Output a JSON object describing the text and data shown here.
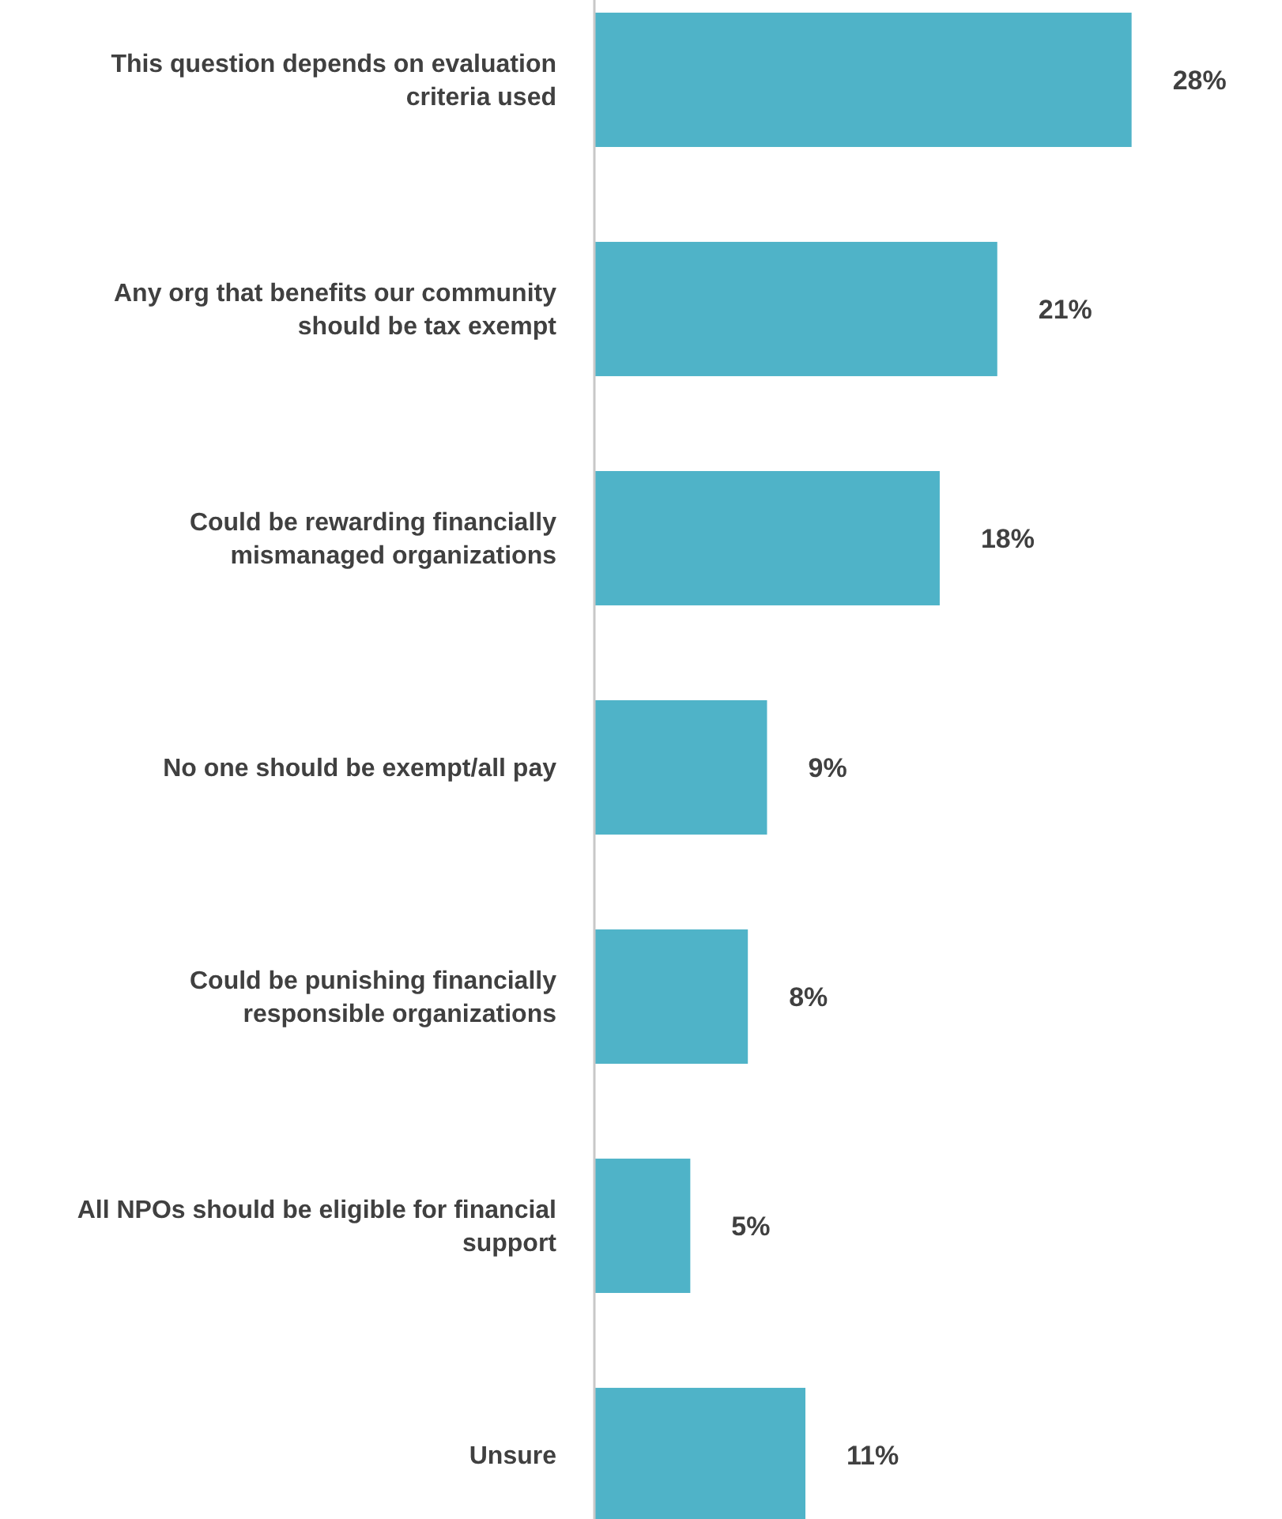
{
  "chart_data": {
    "type": "bar",
    "orientation": "horizontal",
    "categories": [
      "This question depends on evaluation criteria used",
      "Any org that benefits our community should be tax exempt",
      "Could be rewarding financially mismanaged organizations",
      "No one should be exempt/all pay",
      "Could be punishing financially responsible organizations",
      "All NPOs should be eligible for financial support",
      "Unsure"
    ],
    "values": [
      28,
      21,
      18,
      9,
      8,
      5,
      11
    ],
    "value_labels": [
      "28%",
      "21%",
      "18%",
      "9%",
      "8%",
      "5%",
      "11%"
    ],
    "color": "#4fb3c8"
  }
}
